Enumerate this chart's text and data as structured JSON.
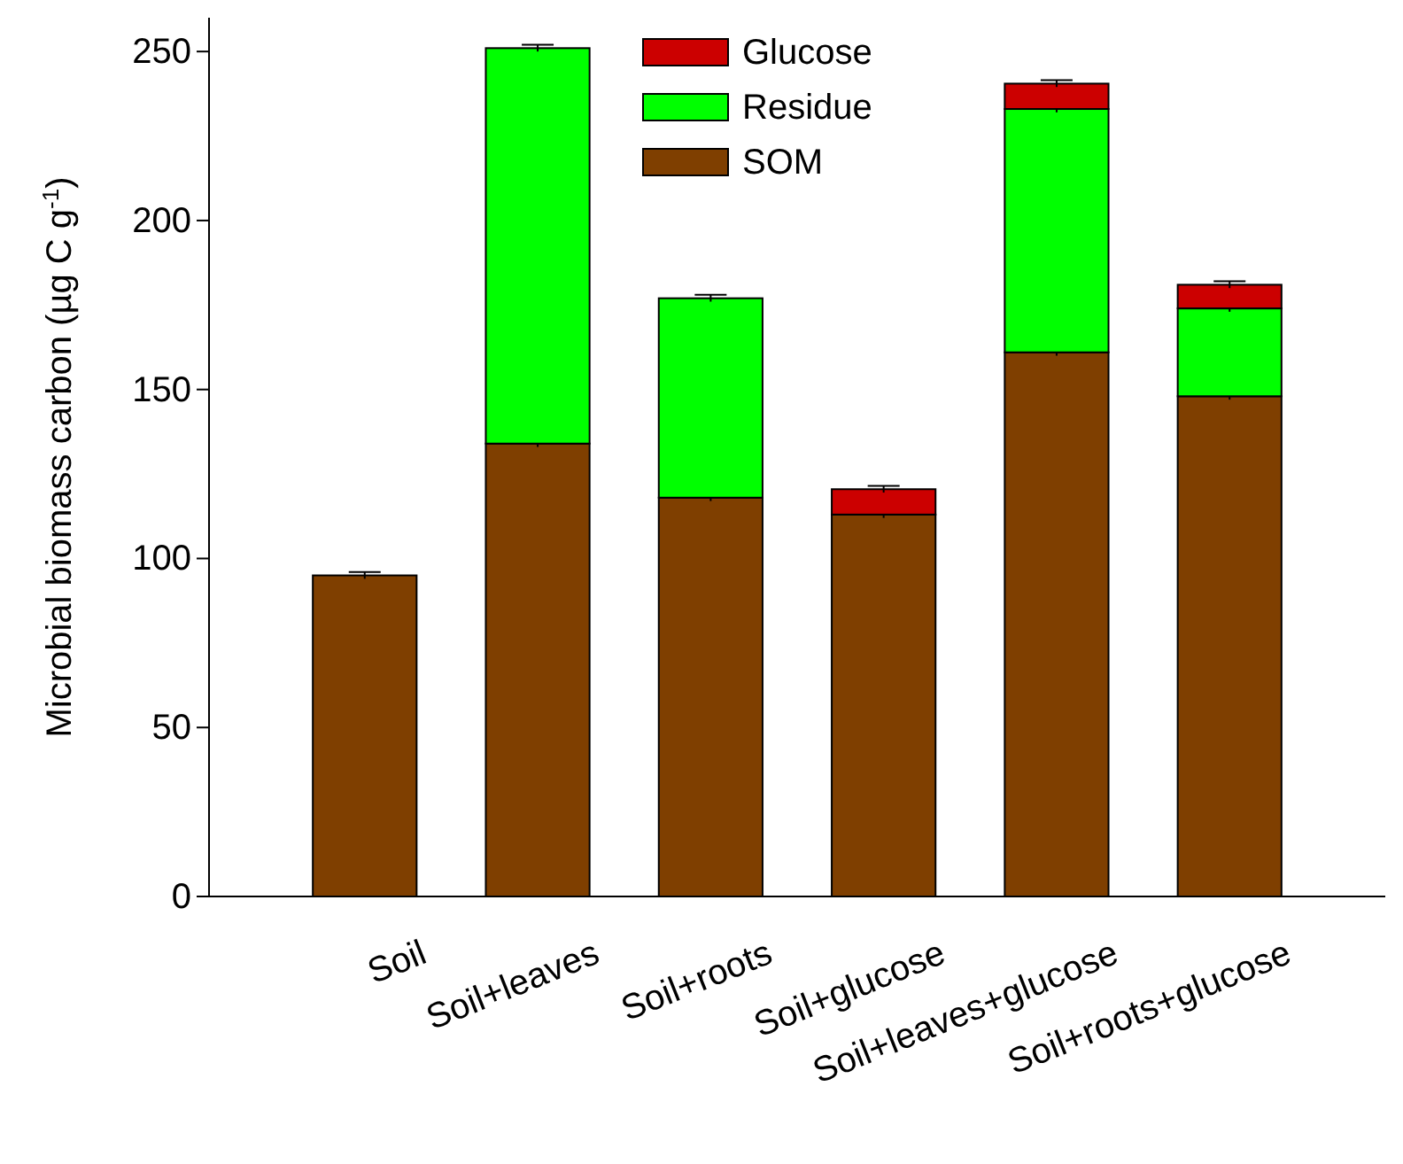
{
  "chart_data": {
    "type": "bar",
    "stacked": true,
    "ylabel": "Microbial biomass carbon (µg C g$^{-1}$)",
    "categories": [
      "Soil",
      "Soil+leaves",
      "Soil+roots",
      "Soil+glucose",
      "Soil+leaves+glucose",
      "Soil+roots+glucose"
    ],
    "series": [
      {
        "name": "SOM",
        "color": "#7f3f00",
        "values": [
          95,
          134,
          118,
          113,
          161,
          148
        ],
        "errors": [
          1,
          1,
          1,
          1,
          1,
          1
        ]
      },
      {
        "name": "Residue",
        "color": "#00ff00",
        "values": [
          null,
          117,
          59,
          null,
          72,
          26
        ],
        "errors": [
          null,
          1,
          1,
          null,
          1,
          1
        ]
      },
      {
        "name": "Glucose",
        "color": "#cc0000",
        "values": [
          null,
          null,
          null,
          7.5,
          7.5,
          7
        ],
        "errors": [
          null,
          null,
          null,
          1,
          1,
          1
        ]
      }
    ],
    "ylim": [
      0,
      260
    ],
    "yticks": [
      0,
      50,
      100,
      150,
      200,
      250
    ],
    "legend": "top",
    "grid": false
  }
}
